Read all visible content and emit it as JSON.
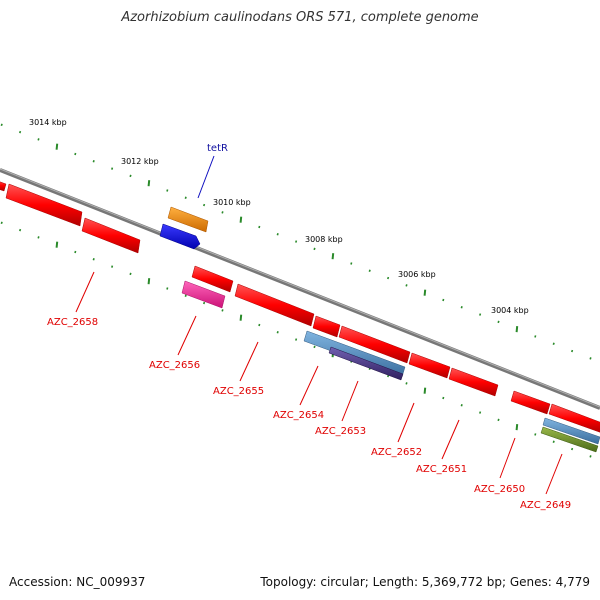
{
  "title": "Azorhizobium caulinodans ORS 571, complete genome",
  "footer": {
    "accession": "Accession: NC_009937",
    "summary": "Topology: circular; Length: 5,369,772 bp; Genes: 4,779"
  },
  "ticks": [
    {
      "label": "3014 kbp"
    },
    {
      "label": "3012 kbp"
    },
    {
      "label": "3010 kbp"
    },
    {
      "label": "3008 kbp"
    },
    {
      "label": "3006 kbp"
    },
    {
      "label": "3004 kbp"
    }
  ],
  "genes": [
    {
      "label": "AZC_2658"
    },
    {
      "label": "AZC_2656"
    },
    {
      "label": "AZC_2655"
    },
    {
      "label": "AZC_2654"
    },
    {
      "label": "AZC_2653"
    },
    {
      "label": "AZC_2652"
    },
    {
      "label": "AZC_2651"
    },
    {
      "label": "AZC_2650"
    },
    {
      "label": "AZC_2649"
    }
  ],
  "feature_label": "tetR",
  "colors": {
    "backbone": "#7a7a7a",
    "cds": "#ff0000",
    "ruler": "#2a8a2a",
    "label": "#e00000",
    "orange": "#ff8c00",
    "blue": "#0000ee",
    "pink": "#ff3399",
    "steelblue": "#4f8fc8",
    "purple": "#4b3c8c",
    "olive": "#6b8e23"
  }
}
